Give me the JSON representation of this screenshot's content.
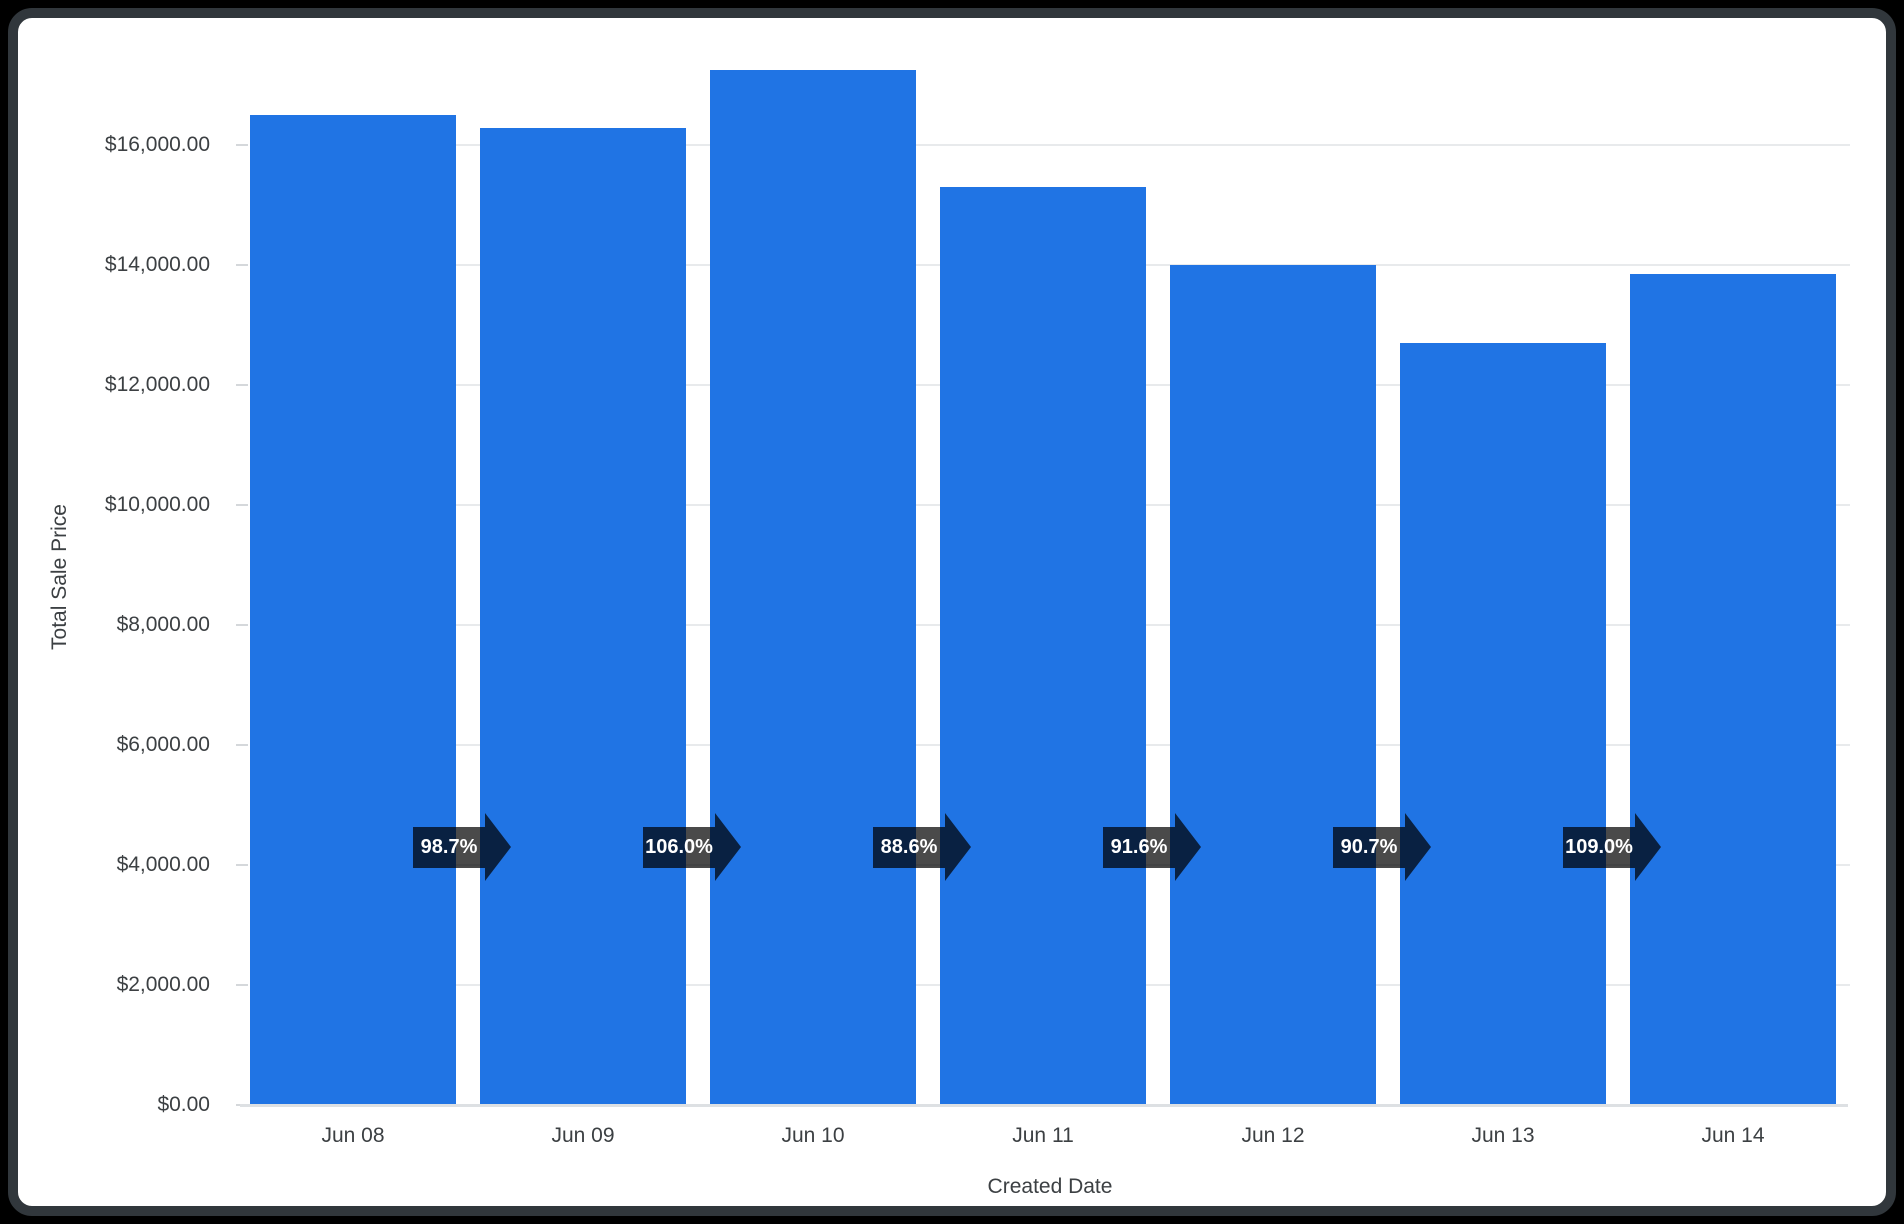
{
  "window": {
    "background_color": "#000000",
    "frame_border_color": "#31373c",
    "card_background_color": "#ffffff"
  },
  "chart_data": {
    "type": "bar",
    "title": "",
    "xlabel": "Created Date",
    "ylabel": "Total Sale Price",
    "categories": [
      "Jun 08",
      "Jun 09",
      "Jun 10",
      "Jun 11",
      "Jun 12",
      "Jun 13",
      "Jun 14"
    ],
    "values": [
      16480,
      16270,
      17240,
      15280,
      13990,
      12690,
      13830
    ],
    "percent_change_labels": [
      "98.7%",
      "106.0%",
      "88.6%",
      "91.6%",
      "90.7%",
      "109.0%"
    ],
    "y_ticks": [
      {
        "value": 0,
        "label": "$0.00"
      },
      {
        "value": 2000,
        "label": "$2,000.00"
      },
      {
        "value": 4000,
        "label": "$4,000.00"
      },
      {
        "value": 6000,
        "label": "$6,000.00"
      },
      {
        "value": 8000,
        "label": "$8,000.00"
      },
      {
        "value": 10000,
        "label": "$10,000.00"
      },
      {
        "value": 12000,
        "label": "$12,000.00"
      },
      {
        "value": 14000,
        "label": "$14,000.00"
      },
      {
        "value": 16000,
        "label": "$16,000.00"
      }
    ],
    "ylim": [
      0,
      17800
    ],
    "grid": true,
    "legend": "none",
    "bar_color": "#2074e4",
    "gridline_color": "#e8eaec",
    "axis_text_color": "#3c4043",
    "badge_color": "rgba(0,0,0,0.71)",
    "badge_text_color": "#ffffff"
  }
}
